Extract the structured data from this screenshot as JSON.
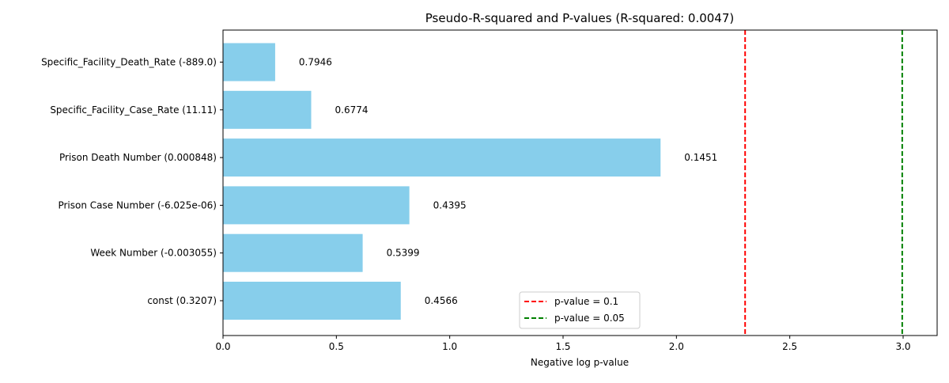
{
  "chart_data": {
    "type": "bar",
    "orientation": "horizontal",
    "title": "Pseudo-R-squared and P-values (R-squared: 0.0047)",
    "xlabel": "Negative log p-value",
    "ylabel": "",
    "xlim": [
      0,
      3.15
    ],
    "x_ticks": [
      "0.0",
      "0.5",
      "1.0",
      "1.5",
      "2.0",
      "2.5",
      "3.0"
    ],
    "categories": [
      "const (0.3207)",
      "Week Number (-0.003055)",
      "Prison Case Number (-6.025e-06)",
      "Prison Death Number (0.000848)",
      "Specific_Facility_Case_Rate (11.11)",
      "Specific_Facility_Death_Rate (-889.0)"
    ],
    "values": [
      0.784,
      0.616,
      0.822,
      1.93,
      0.389,
      0.23
    ],
    "data_labels": [
      "0.4566",
      "0.5399",
      "0.4395",
      "0.1451",
      "0.6774",
      "0.7946"
    ],
    "bar_color": "#87ceeb",
    "reference_lines": [
      {
        "x": 2.303,
        "color": "#ff0000",
        "style": "dashed",
        "label": "p-value = 0.1"
      },
      {
        "x": 2.996,
        "color": "#008000",
        "style": "dashed",
        "label": "p-value = 0.05"
      }
    ],
    "grid": false,
    "legend_position": "lower-center"
  }
}
